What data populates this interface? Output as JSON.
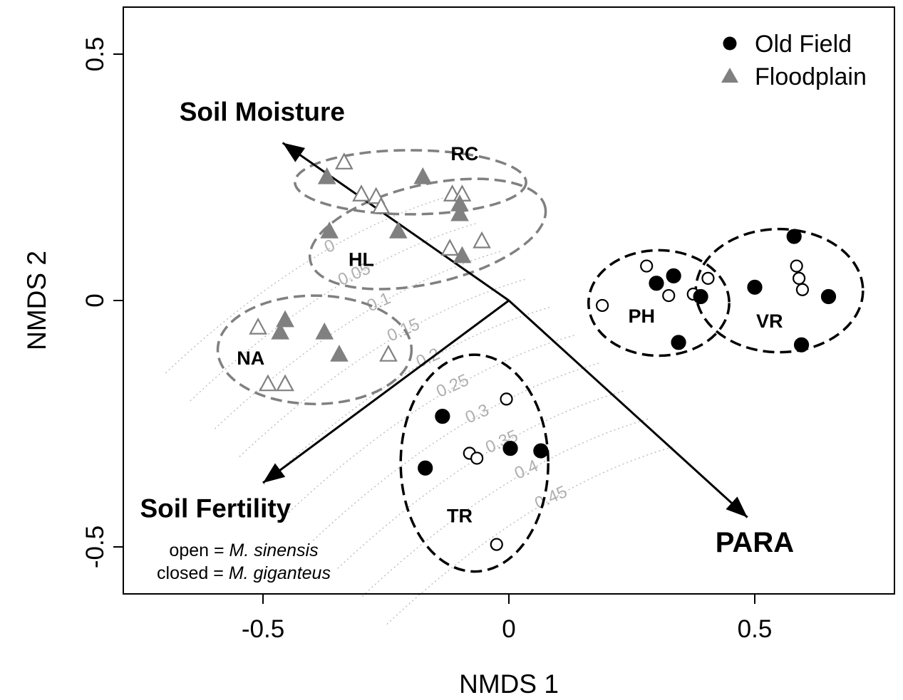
{
  "chart_data": {
    "type": "scatter",
    "xlabel": "NMDS 1",
    "ylabel": "NMDS 2",
    "xlim": [
      -0.78,
      0.78
    ],
    "ylim": [
      -0.6,
      0.6
    ],
    "x_ticks": [
      -0.5,
      0,
      0.5
    ],
    "x_tick_labels": [
      "-0.5",
      "0",
      "0.5"
    ],
    "y_ticks": [
      -0.5,
      0,
      0.5
    ],
    "y_tick_labels": [
      "-0.5",
      "0",
      "0.5"
    ],
    "grid": false,
    "legend": {
      "position": "top-right",
      "entries": [
        {
          "label": "Old Field",
          "marker": "filled-circle",
          "color": "#000000"
        },
        {
          "label": "Floodplain",
          "marker": "filled-triangle",
          "color": "#808080"
        }
      ]
    },
    "note_lines": [
      "open = ",
      "M. sinensis",
      "closed = ",
      "M. giganteus"
    ],
    "colors": {
      "old_field": "#000000",
      "floodplain": "#808080",
      "contour": "#b8b8b8",
      "contour_label": "#b0b0b0"
    },
    "series": [
      {
        "name": "Old Field",
        "points": [
          {
            "site": "PH",
            "x": 0.19,
            "y": -0.01,
            "filled": false
          },
          {
            "site": "PH",
            "x": 0.28,
            "y": 0.07,
            "filled": false
          },
          {
            "site": "PH",
            "x": 0.3,
            "y": 0.035,
            "filled": true
          },
          {
            "site": "PH",
            "x": 0.335,
            "y": 0.05,
            "filled": true
          },
          {
            "site": "PH",
            "x": 0.325,
            "y": 0.01,
            "filled": false
          },
          {
            "site": "PH",
            "x": 0.375,
            "y": 0.013,
            "filled": false
          },
          {
            "site": "PH",
            "x": 0.39,
            "y": 0.008,
            "filled": true
          },
          {
            "site": "PH",
            "x": 0.405,
            "y": 0.045,
            "filled": false
          },
          {
            "site": "PH",
            "x": 0.345,
            "y": -0.085,
            "filled": true
          },
          {
            "site": "VR",
            "x": 0.5,
            "y": 0.027,
            "filled": true
          },
          {
            "site": "VR",
            "x": 0.58,
            "y": 0.13,
            "filled": true
          },
          {
            "site": "VR",
            "x": 0.585,
            "y": 0.07,
            "filled": false
          },
          {
            "site": "VR",
            "x": 0.59,
            "y": 0.045,
            "filled": false
          },
          {
            "site": "VR",
            "x": 0.597,
            "y": 0.022,
            "filled": false
          },
          {
            "site": "VR",
            "x": 0.65,
            "y": 0.008,
            "filled": true
          },
          {
            "site": "VR",
            "x": 0.595,
            "y": -0.09,
            "filled": true
          },
          {
            "site": "TR",
            "x": -0.135,
            "y": -0.235,
            "filled": true
          },
          {
            "site": "TR",
            "x": -0.005,
            "y": -0.2,
            "filled": false
          },
          {
            "site": "TR",
            "x": -0.08,
            "y": -0.31,
            "filled": false
          },
          {
            "site": "TR",
            "x": -0.065,
            "y": -0.32,
            "filled": false
          },
          {
            "site": "TR",
            "x": 0.003,
            "y": -0.3,
            "filled": true
          },
          {
            "site": "TR",
            "x": 0.065,
            "y": -0.305,
            "filled": true
          },
          {
            "site": "TR",
            "x": -0.17,
            "y": -0.34,
            "filled": true
          },
          {
            "site": "TR",
            "x": -0.025,
            "y": -0.495,
            "filled": false
          }
        ]
      },
      {
        "name": "Floodplain",
        "points": [
          {
            "site": "RC",
            "x": -0.335,
            "y": 0.28,
            "filled": false
          },
          {
            "site": "RC",
            "x": -0.37,
            "y": 0.25,
            "filled": true
          },
          {
            "site": "RC",
            "x": -0.175,
            "y": 0.25,
            "filled": true
          },
          {
            "site": "RC",
            "x": -0.3,
            "y": 0.215,
            "filled": false
          },
          {
            "site": "RC",
            "x": -0.27,
            "y": 0.21,
            "filled": false
          },
          {
            "site": "RC",
            "x": -0.115,
            "y": 0.215,
            "filled": false
          },
          {
            "site": "RC",
            "x": -0.095,
            "y": 0.215,
            "filled": false
          },
          {
            "site": "RC",
            "x": -0.1,
            "y": 0.195,
            "filled": true
          },
          {
            "site": "HL",
            "x": -0.26,
            "y": 0.19,
            "filled": false
          },
          {
            "site": "HL",
            "x": -0.1,
            "y": 0.175,
            "filled": true
          },
          {
            "site": "HL",
            "x": -0.365,
            "y": 0.14,
            "filled": true
          },
          {
            "site": "HL",
            "x": -0.225,
            "y": 0.14,
            "filled": true
          },
          {
            "site": "HL",
            "x": -0.055,
            "y": 0.12,
            "filled": false
          },
          {
            "site": "HL",
            "x": -0.12,
            "y": 0.105,
            "filled": false
          },
          {
            "site": "HL",
            "x": -0.095,
            "y": 0.09,
            "filled": true
          },
          {
            "site": "NA",
            "x": -0.455,
            "y": -0.04,
            "filled": true
          },
          {
            "site": "NA",
            "x": -0.51,
            "y": -0.055,
            "filled": false
          },
          {
            "site": "NA",
            "x": -0.465,
            "y": -0.065,
            "filled": true
          },
          {
            "site": "NA",
            "x": -0.375,
            "y": -0.065,
            "filled": true
          },
          {
            "site": "NA",
            "x": -0.345,
            "y": -0.11,
            "filled": true
          },
          {
            "site": "NA",
            "x": -0.245,
            "y": -0.11,
            "filled": false
          },
          {
            "site": "NA",
            "x": -0.49,
            "y": -0.17,
            "filled": false
          },
          {
            "site": "NA",
            "x": -0.455,
            "y": -0.17,
            "filled": false
          }
        ]
      }
    ],
    "sites": [
      {
        "name": "RC",
        "group": "Floodplain",
        "label_at": [
          -0.09,
          0.285
        ],
        "ellipse": {
          "cx": -0.2,
          "cy": 0.24,
          "rx": 0.235,
          "ry": 0.065,
          "angle": 0
        }
      },
      {
        "name": "HL",
        "group": "Floodplain",
        "label_at": [
          -0.3,
          0.07
        ],
        "ellipse": {
          "cx": -0.165,
          "cy": 0.135,
          "rx": 0.245,
          "ry": 0.1,
          "angle": 13
        }
      },
      {
        "name": "NA",
        "group": "Floodplain",
        "label_at": [
          -0.525,
          -0.13
        ],
        "ellipse": {
          "cx": -0.395,
          "cy": -0.1,
          "rx": 0.197,
          "ry": 0.11,
          "angle": 0
        }
      },
      {
        "name": "PH",
        "group": "Old Field",
        "label_at": [
          0.27,
          -0.045
        ],
        "ellipse": {
          "cx": 0.305,
          "cy": -0.005,
          "rx": 0.143,
          "ry": 0.107,
          "angle": 0
        }
      },
      {
        "name": "VR",
        "group": "Old Field",
        "label_at": [
          0.53,
          -0.055
        ],
        "ellipse": {
          "cx": 0.55,
          "cy": 0.02,
          "rx": 0.17,
          "ry": 0.125,
          "angle": 0
        }
      },
      {
        "name": "TR",
        "group": "Old Field",
        "label_at": [
          -0.1,
          -0.45
        ],
        "ellipse": {
          "cx": -0.07,
          "cy": -0.33,
          "rx": 0.15,
          "ry": 0.22,
          "angle": 0
        }
      }
    ],
    "vectors": [
      {
        "name": "Soil Moisture",
        "x": -0.46,
        "y": 0.32,
        "label_at": [
          -0.67,
          0.365
        ]
      },
      {
        "name": "Soil Fertility",
        "x": -0.5,
        "y": -0.37,
        "label_at": [
          -0.75,
          -0.44
        ]
      },
      {
        "name": "PARA",
        "x": 0.485,
        "y": -0.44,
        "label_at": [
          0.42,
          -0.51
        ]
      }
    ],
    "contours": {
      "labels": [
        "0",
        "0.05",
        "0.1",
        "0.15",
        "0.2",
        "0.25",
        "0.3",
        "0.35",
        "0.4",
        "0.45"
      ],
      "values": [
        0,
        0.05,
        0.1,
        0.15,
        0.2,
        0.25,
        0.3,
        0.35,
        0.4,
        0.45
      ]
    }
  }
}
